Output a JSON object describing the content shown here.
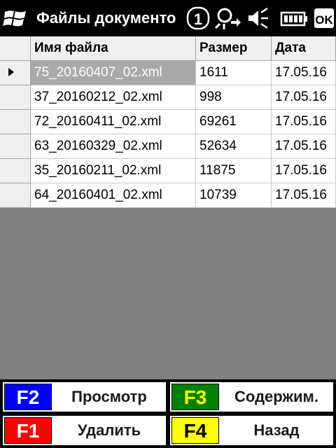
{
  "titlebar": {
    "title": "Файлы документо",
    "num_badge": "1",
    "ok_label": "OK"
  },
  "grid": {
    "headers": {
      "name": "Имя файла",
      "size": "Размер",
      "date": "Дата"
    },
    "rows": [
      {
        "name": "75_20160407_02.xml",
        "size": "1611",
        "date": "17.05.16"
      },
      {
        "name": "37_20160212_02.xml",
        "size": "998",
        "date": "17.05.16"
      },
      {
        "name": "72_20160411_02.xml",
        "size": "69261",
        "date": "17.05.16"
      },
      {
        "name": "63_20160329_02.xml",
        "size": "52634",
        "date": "17.05.16"
      },
      {
        "name": "35_20160211_02.xml",
        "size": "11875",
        "date": "17.05.16"
      },
      {
        "name": "64_20160401_02.xml",
        "size": "10739",
        "date": "17.05.16"
      }
    ]
  },
  "fkeys": {
    "f2": {
      "key": "F2",
      "label": "Просмотр",
      "color": "#0000ff",
      "text_color": "#ffffff"
    },
    "f3": {
      "key": "F3",
      "label": "Содержим.",
      "color": "#008000",
      "text_color": "#ffff00"
    },
    "f1": {
      "key": "F1",
      "label": "Удалить",
      "color": "#ff0000",
      "text_color": "#ffffff"
    },
    "f4": {
      "key": "F4",
      "label": "Назад",
      "color": "#ffff00",
      "text_color": "#000000"
    }
  }
}
